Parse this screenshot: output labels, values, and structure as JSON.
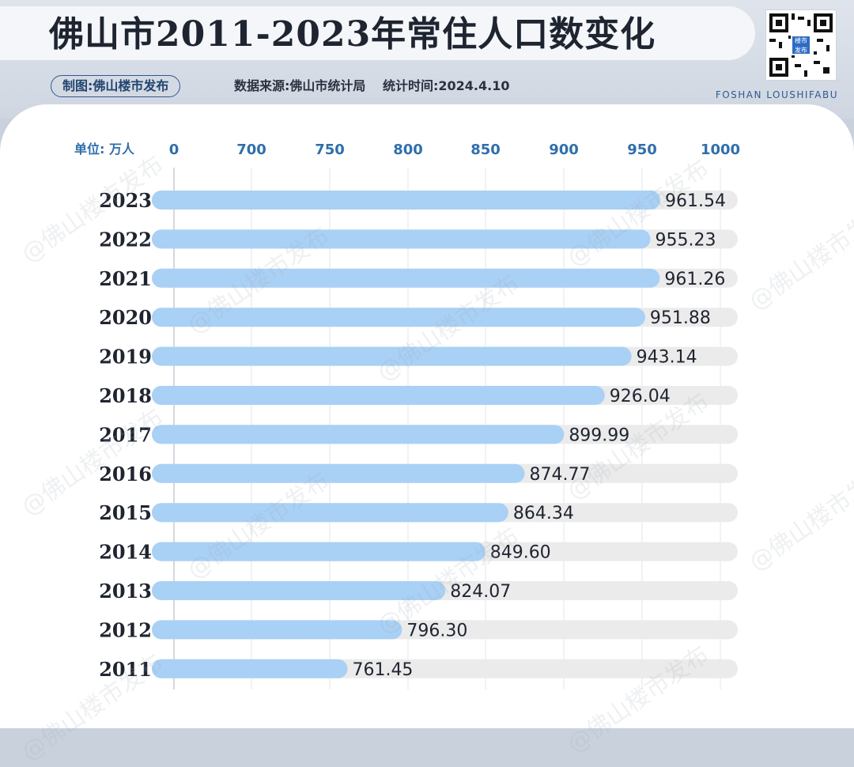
{
  "header": {
    "title": "佛山市2011-2023年常住人口数变化",
    "credit": "制图:佛山楼市发布",
    "source": "数据来源:佛山市统计局　 统计时间:2024.4.10",
    "brand_en": "FOSHAN LOUSHIFABU",
    "qr_logo_text": "楼市发布"
  },
  "watermark_text": "@佛山楼市发布",
  "colors": {
    "bar_fill": "#a9d0f5",
    "track_fill": "#ebebeb",
    "accent": "#2f6fab",
    "title_text": "#1e2530"
  },
  "chart_data": {
    "type": "bar",
    "orientation": "horizontal",
    "unit_label": "单位: 万人",
    "x_ticks": [
      "0",
      "700",
      "750",
      "800",
      "850",
      "900",
      "950",
      "1000"
    ],
    "x_axis_break": "0 to 650 compressed; linear 650-1000 (50 per tick)",
    "xlim": [
      650,
      1000
    ],
    "grid": true,
    "categories": [
      "2023",
      "2022",
      "2021",
      "2020",
      "2019",
      "2018",
      "2017",
      "2016",
      "2015",
      "2014",
      "2013",
      "2012",
      "2011"
    ],
    "values": [
      961.54,
      955.23,
      961.26,
      951.88,
      943.14,
      926.04,
      899.99,
      874.77,
      864.34,
      849.6,
      824.07,
      796.3,
      761.45
    ],
    "value_labels": [
      "961.54",
      "955.23",
      "961.26",
      "951.88",
      "943.14",
      "926.04",
      "899.99",
      "874.77",
      "864.34",
      "849.60",
      "824.07",
      "796.30",
      "761.45"
    ]
  }
}
